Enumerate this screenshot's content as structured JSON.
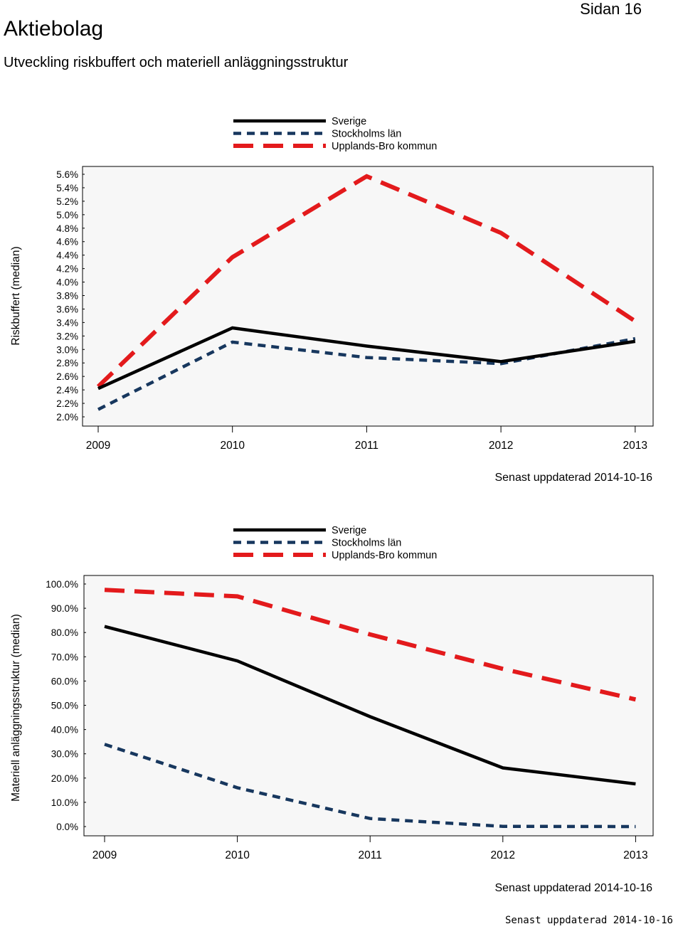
{
  "header": {
    "title": "Aktiebolag",
    "page_label": "Sidan 16",
    "subtitle": "Utveckling riskbuffert och materiell anläggningsstruktur"
  },
  "colors": {
    "sverige": "#000000",
    "stockholm": "#17375e",
    "upplands_bro": "#e31a1c",
    "plot_bg": "#f7f7f7"
  },
  "chart_data": [
    {
      "type": "line",
      "ylabel": "Riskbuffert (median)",
      "xlabel": "",
      "categories": [
        "2009",
        "2010",
        "2011",
        "2012",
        "2013"
      ],
      "ylim": [
        2.0,
        5.6
      ],
      "y_ticks": [
        2.0,
        2.2,
        2.4,
        2.6,
        2.8,
        3.0,
        3.2,
        3.4,
        3.6,
        3.8,
        4.0,
        4.2,
        4.4,
        4.6,
        4.8,
        5.0,
        5.2,
        5.4,
        5.6
      ],
      "y_tick_labels": [
        "2.0%",
        "2.2%",
        "2.4%",
        "2.6%",
        "2.8%",
        "3.0%",
        "3.2%",
        "3.4%",
        "3.6%",
        "3.8%",
        "4.0%",
        "4.2%",
        "4.4%",
        "4.6%",
        "4.8%",
        "5.0%",
        "5.2%",
        "5.4%",
        "5.6%"
      ],
      "legend": [
        "Sverige",
        "Stockholms län",
        "Upplands-Bro kommun"
      ],
      "series": [
        {
          "name": "Sverige",
          "style": "solid",
          "values": [
            2.42,
            3.32,
            3.05,
            2.82,
            3.12
          ]
        },
        {
          "name": "Stockholms län",
          "style": "dotted-dash",
          "values": [
            2.11,
            3.11,
            2.88,
            2.79,
            3.16
          ]
        },
        {
          "name": "Upplands-Bro kommun",
          "style": "long-dash",
          "values": [
            2.45,
            4.37,
            5.57,
            4.73,
            3.42
          ]
        }
      ],
      "updated": "Senast uppdaterad 2014-10-16"
    },
    {
      "type": "line",
      "ylabel": "Materiell anläggningsstruktur (median)",
      "xlabel": "",
      "categories": [
        "2009",
        "2010",
        "2011",
        "2012",
        "2013"
      ],
      "ylim": [
        0,
        100
      ],
      "y_ticks": [
        0,
        10,
        20,
        30,
        40,
        50,
        60,
        70,
        80,
        90,
        100
      ],
      "y_tick_labels": [
        "0.0%",
        "10.0%",
        "20.0%",
        "30.0%",
        "40.0%",
        "50.0%",
        "60.0%",
        "70.0%",
        "80.0%",
        "90.0%",
        "100.0%"
      ],
      "legend": [
        "Sverige",
        "Stockholms län",
        "Upplands-Bro kommun"
      ],
      "series": [
        {
          "name": "Sverige",
          "style": "solid",
          "values": [
            82.5,
            68.3,
            45.3,
            24.2,
            17.6
          ]
        },
        {
          "name": "Stockholms län",
          "style": "dotted-dash",
          "values": [
            33.9,
            16.0,
            3.3,
            0.1,
            0.0
          ]
        },
        {
          "name": "Upplands-Bro kommun",
          "style": "long-dash",
          "values": [
            97.6,
            94.9,
            79.2,
            65.0,
            52.4
          ]
        }
      ],
      "updated": "Senast uppdaterad 2014-10-16"
    }
  ],
  "footer": {
    "stamp": "Senast uppdaterad 2014-10-16"
  }
}
